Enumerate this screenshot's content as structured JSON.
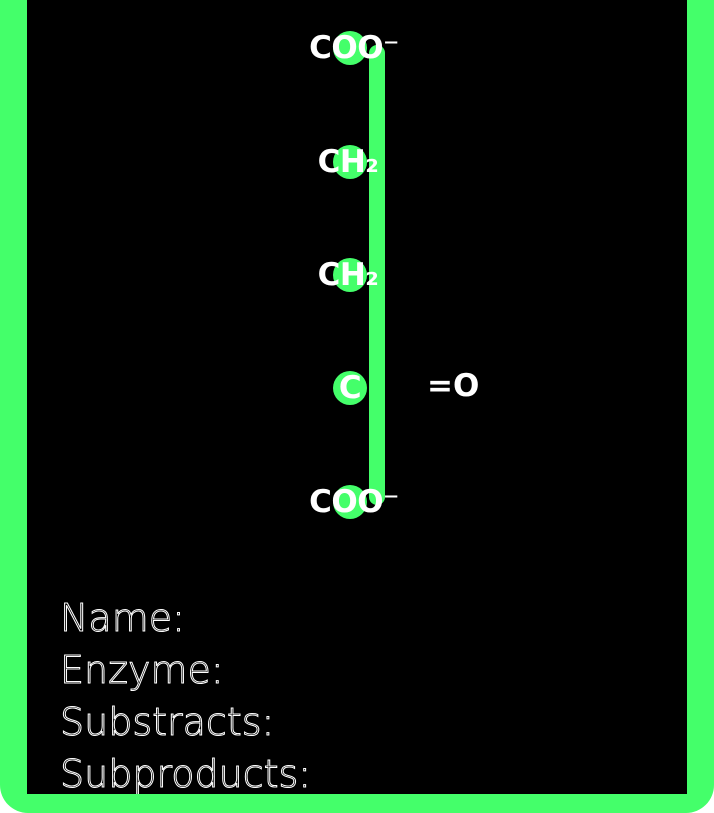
{
  "diagram": {
    "title": "",
    "groups": [
      {
        "label": "COO⁻"
      },
      {
        "label": "CH₂"
      },
      {
        "label": "CH₂"
      },
      {
        "label": "C"
      },
      {
        "label": "COO⁻"
      }
    ],
    "side_group": "=O",
    "colors": {
      "accent": "#44ff6a",
      "background": "#000000",
      "text": "#ffffff"
    }
  },
  "fields": {
    "name": "Name:",
    "enzyme": "Enzyme:",
    "substracts": "Substracts:",
    "subproducts": "Subproducts:"
  }
}
